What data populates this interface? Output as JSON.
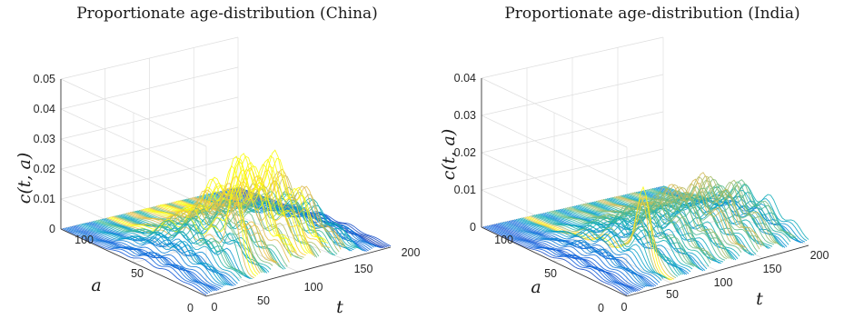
{
  "chart_data": [
    {
      "type": "surface",
      "title": "Proportionate age-distribution (China)",
      "zlabel": "c(t, a)",
      "xlabel": "t",
      "ylabel": "a",
      "t_ticks": [
        "0",
        "50",
        "100",
        "150",
        "200"
      ],
      "a_ticks": [
        "0",
        "50",
        "100"
      ],
      "z_ticks": [
        "0",
        "0.01",
        "0.02",
        "0.03",
        "0.04",
        "0.05"
      ],
      "t_range": [
        0,
        200
      ],
      "a_range": [
        0,
        100
      ],
      "z_range": [
        0,
        0.05
      ],
      "colormap": "parula",
      "grid": true,
      "profile_t": [
        0,
        20,
        40,
        60,
        80,
        90,
        100,
        110,
        120,
        130,
        140,
        150,
        160,
        170,
        180,
        190,
        200
      ],
      "profile_peak_c": [
        0.003,
        0.007,
        0.011,
        0.014,
        0.018,
        0.022,
        0.025,
        0.024,
        0.024,
        0.023,
        0.02,
        0.016,
        0.012,
        0.008,
        0.005,
        0.003,
        0.002
      ],
      "spike": {
        "t": 55,
        "a": 15,
        "c": 0.023
      }
    },
    {
      "type": "surface",
      "title": "Proportionate age-distribution (India)",
      "zlabel": "c(t, a)",
      "xlabel": "t",
      "ylabel": "a",
      "t_ticks": [
        "0",
        "50",
        "100",
        "150",
        "200"
      ],
      "a_ticks": [
        "0",
        "50",
        "100"
      ],
      "z_ticks": [
        "0",
        "0.01",
        "0.02",
        "0.03",
        "0.04"
      ],
      "t_range": [
        0,
        200
      ],
      "a_range": [
        0,
        100
      ],
      "z_range": [
        0,
        0.04
      ],
      "colormap": "parula",
      "grid": true,
      "profile_t": [
        0,
        20,
        40,
        60,
        80,
        100,
        120,
        140,
        160,
        180,
        200
      ],
      "profile_peak_c": [
        0.002,
        0.004,
        0.006,
        0.008,
        0.01,
        0.011,
        0.012,
        0.013,
        0.012,
        0.01,
        0.008
      ],
      "spike": {
        "t": 50,
        "a": 20,
        "c": 0.02
      }
    }
  ]
}
